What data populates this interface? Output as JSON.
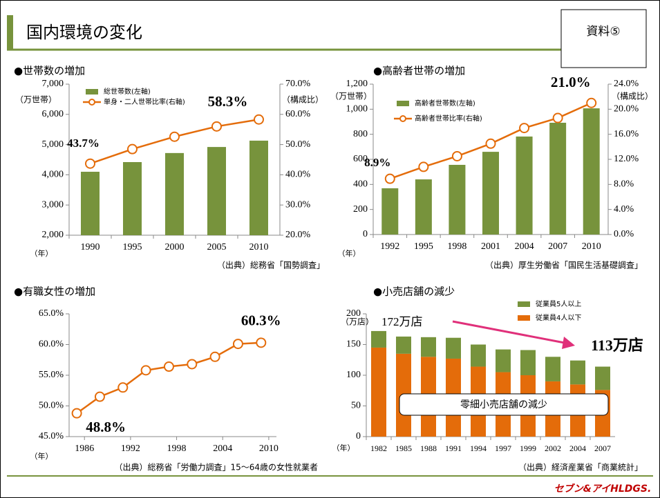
{
  "header": {
    "title": "国内環境の変化",
    "badge": "資料⑤"
  },
  "footer": {
    "logo": "セブン&アイHLDGS."
  },
  "chart_data": [
    {
      "type": "combo",
      "title": "●世帯数の増加",
      "ylabel": "（万世帯）",
      "y2label": "（構成比）",
      "xlabel": "（年）",
      "source": "（出典）総務省「国勢調査」",
      "categories": [
        "1990",
        "1995",
        "2000",
        "2005",
        "2010"
      ],
      "series": [
        {
          "name": "総世帯数(左軸)",
          "color": "#77933c",
          "values": [
            4100,
            4420,
            4720,
            4920,
            5130
          ]
        },
        {
          "name": "単身・二人世帯比率(右軸)",
          "color": "#e46c0a",
          "axis": "y2",
          "values": [
            43.7,
            48.5,
            52.6,
            56.0,
            58.3
          ],
          "value_labels": [
            "43.7%",
            null,
            null,
            null,
            "58.3%"
          ]
        }
      ],
      "ylim": [
        2000,
        7000
      ],
      "yticks": [
        {
          "value": 2000,
          "label": "2,000"
        },
        {
          "value": 3000,
          "label": "3,000"
        },
        {
          "value": 4000,
          "label": "4,000"
        },
        {
          "value": 5000,
          "label": "5,000"
        },
        {
          "value": 6000,
          "label": "6,000"
        },
        {
          "value": 7000,
          "label": "7,000"
        }
      ],
      "y2lim": [
        20,
        70
      ],
      "y2ticks": [
        {
          "value": 20,
          "label": "20.0%"
        },
        {
          "value": 30,
          "label": "30.0%"
        },
        {
          "value": 40,
          "label": "40.0%"
        },
        {
          "value": 50,
          "label": "50.0%"
        },
        {
          "value": 60,
          "label": "60.0%"
        },
        {
          "value": 70,
          "label": "70.0%"
        }
      ]
    },
    {
      "type": "combo",
      "title": "●高齢者世帯の増加",
      "ylabel": "（万世帯）",
      "y2label": "（構成比）",
      "xlabel": "（年）",
      "source": "（出典）厚生労働省「国民生活基礎調査」",
      "categories": [
        "1992",
        "1995",
        "1998",
        "2001",
        "2004",
        "2007",
        "2010"
      ],
      "series": [
        {
          "name": "高齢者世帯数(左軸)",
          "color": "#77933c",
          "values": [
            369,
            440,
            556,
            660,
            782,
            892,
            1007
          ]
        },
        {
          "name": "高齢者世帯比率(右軸)",
          "color": "#e46c0a",
          "axis": "y2",
          "values": [
            8.9,
            10.8,
            12.5,
            14.5,
            17.0,
            18.6,
            21.0
          ],
          "value_labels": [
            "8.9%",
            null,
            null,
            null,
            null,
            null,
            "21.0%"
          ]
        }
      ],
      "ylim": [
        0,
        1200
      ],
      "yticks": [
        0,
        200,
        400,
        600,
        800,
        {
          "value": 1000,
          "label": "1,000"
        },
        {
          "value": 1200,
          "label": "1,200"
        }
      ],
      "y2lim": [
        0,
        24
      ],
      "y2ticks": [
        {
          "value": 0,
          "label": "0.0%"
        },
        {
          "value": 4,
          "label": "4.0%"
        },
        {
          "value": 8,
          "label": "8.0%"
        },
        {
          "value": 12,
          "label": "12.0%"
        },
        {
          "value": 16,
          "label": "16.0%"
        },
        {
          "value": 20,
          "label": "20.0%"
        },
        {
          "value": 24,
          "label": "24.0%"
        }
      ]
    },
    {
      "type": "line",
      "title": "●有職女性の増加",
      "xlabel": "（年）",
      "source": "（出典）総務省「労働力調査」15～64歳の女性就業者",
      "x": [
        1985,
        1988,
        1991,
        1994,
        1997,
        2000,
        2003,
        2006,
        2009
      ],
      "series": [
        {
          "color": "#e46c0a",
          "values": [
            48.8,
            51.5,
            53.0,
            55.8,
            56.4,
            56.8,
            58.0,
            60.1,
            60.3
          ],
          "value_labels": [
            "48.8%",
            null,
            null,
            null,
            null,
            null,
            null,
            null,
            "60.3%"
          ]
        }
      ],
      "xlim": [
        1984,
        2011
      ],
      "xticks": [
        1986,
        1992,
        1998,
        2004,
        2010
      ],
      "ylim": [
        45,
        65
      ],
      "yticks": [
        {
          "value": 45,
          "label": "45.0%"
        },
        {
          "value": 50,
          "label": "50.0%"
        },
        {
          "value": 55,
          "label": "55.0%"
        },
        {
          "value": 60,
          "label": "60.0%"
        },
        {
          "value": 65,
          "label": "65.0%"
        }
      ]
    },
    {
      "type": "stacked_bar",
      "title": "●小売店舗の減少",
      "ylabel": "（万店）",
      "xlabel": "（年）",
      "source": "（出典）経済産業省「商業統計」",
      "categories": [
        "1982",
        "1985",
        "1988",
        "1991",
        "1994",
        "1997",
        "1999",
        "2002",
        "2004",
        "2007"
      ],
      "series": [
        {
          "name": "従業員4人以下",
          "color": "#e46c0a",
          "values": [
            145,
            135,
            130,
            127,
            114,
            105,
            100,
            90,
            85,
            76
          ]
        },
        {
          "name": "従業員5人以上",
          "color": "#77933c",
          "values": [
            27,
            28,
            32,
            34,
            36,
            37,
            41,
            40,
            39,
            38
          ]
        }
      ],
      "ylim": [
        0,
        200
      ],
      "yticks": [
        0,
        50,
        100,
        150,
        200
      ],
      "annotations": [
        "172万店",
        "113万店",
        "零細小売店舗の減少"
      ]
    }
  ]
}
